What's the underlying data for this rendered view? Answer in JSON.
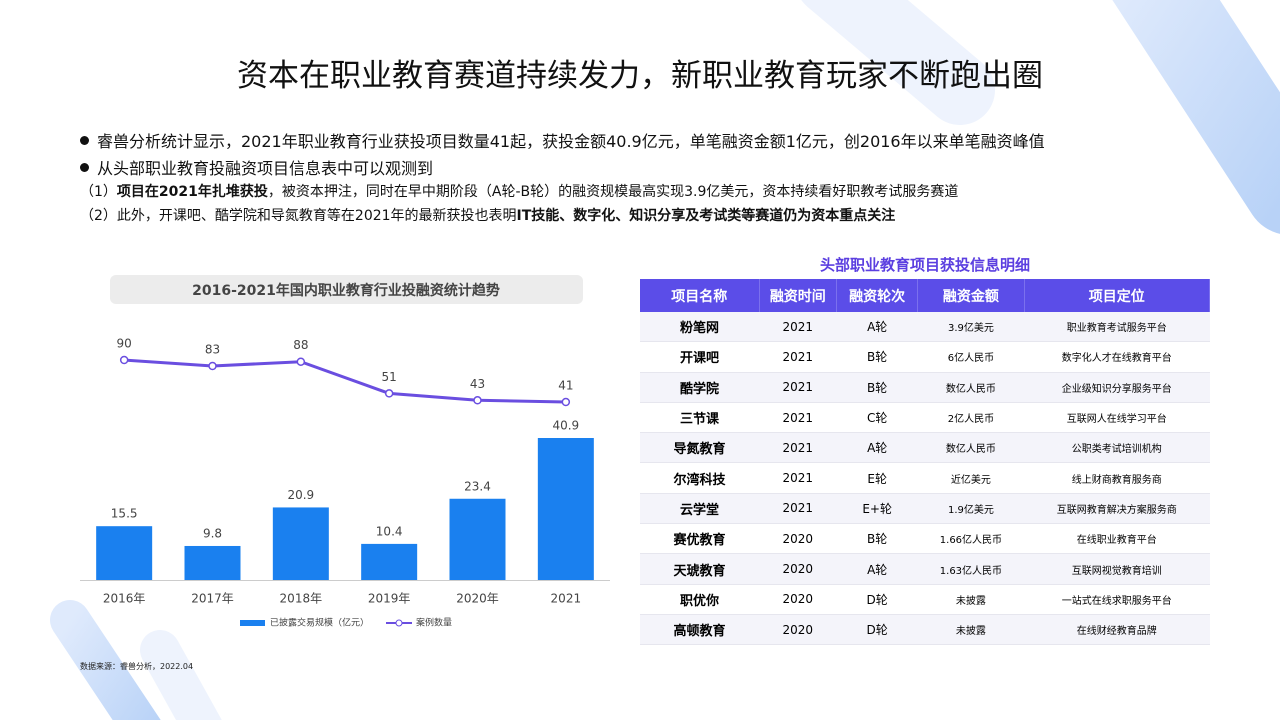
{
  "title": "资本在职业教育赛道持续发力，新职业教育玩家不断跑出圈",
  "bullets": [
    {
      "segments": [
        {
          "text": "睿兽分析统计显示，2021年职业教育行业获投项目数量41起，获投金额40.9亿元，单笔融资金额1亿元，创2016年以来单笔融资峰值",
          "bold": false
        }
      ]
    },
    {
      "segments": [
        {
          "text": "从头部职业教育投融资项目信息表中可以观测到",
          "bold": false
        }
      ]
    },
    {
      "segments": [
        {
          "text": "（1）",
          "bold": false
        },
        {
          "text": "项目在2021年扎堆获投",
          "bold": true
        },
        {
          "text": "，被资本押注，同时在早中期阶段（A轮-B轮）的融资规模最高实现3.9亿美元，资本持续看好职教考试服务赛道",
          "bold": false
        }
      ]
    },
    {
      "segments": [
        {
          "text": "（2）此外，开课吧、酷学院和导氮教育等在2021年的最新获投也表明",
          "bold": false
        },
        {
          "text": "IT技能、数字化、知识分享及考试类等赛道仍为资本重点关注",
          "bold": true
        }
      ]
    }
  ],
  "chart_data": {
    "type": "bar",
    "title": "2016-2021年国内职业教育行业投融资统计趋势",
    "categories": [
      "2016年",
      "2017年",
      "2018年",
      "2019年",
      "2020年",
      "2021"
    ],
    "series": [
      {
        "name": "已披露交易规模（亿元）",
        "type": "bar",
        "color": "#1a80ef",
        "values": [
          15.5,
          9.8,
          20.9,
          10.4,
          23.4,
          40.9
        ]
      },
      {
        "name": "案例数量",
        "type": "line",
        "color": "#6a4ee0",
        "values": [
          90,
          83,
          88,
          51,
          43,
          41
        ]
      }
    ]
  },
  "source": "数据来源：睿兽分析，2022.04",
  "table": {
    "title": "头部职业教育项目获投信息明细",
    "header": [
      "项目名称",
      "融资时间",
      "融资轮次",
      "融资金额",
      "项目定位"
    ],
    "rows": [
      [
        "粉笔网",
        "2021",
        "A轮",
        "3.9亿美元",
        "职业教育考试服务平台"
      ],
      [
        "开课吧",
        "2021",
        "B轮",
        "6亿人民币",
        "数字化人才在线教育平台"
      ],
      [
        "酷学院",
        "2021",
        "B轮",
        "数亿人民币",
        "企业级知识分享服务平台"
      ],
      [
        "三节课",
        "2021",
        "C轮",
        "2亿人民币",
        "互联网人在线学习平台"
      ],
      [
        "导氮教育",
        "2021",
        "A轮",
        "数亿人民币",
        "公职类考试培训机构"
      ],
      [
        "尔湾科技",
        "2021",
        "E轮",
        "近亿美元",
        "线上财商教育服务商"
      ],
      [
        "云学堂",
        "2021",
        "E+轮",
        "1.9亿美元",
        "互联网教育解决方案服务商"
      ],
      [
        "赛优教育",
        "2020",
        "B轮",
        "1.66亿人民币",
        "在线职业教育平台"
      ],
      [
        "天琥教育",
        "2020",
        "A轮",
        "1.63亿人民币",
        "互联网视觉教育培训"
      ],
      [
        "职优你",
        "2020",
        "D轮",
        "未披露",
        "一站式在线求职服务平台"
      ],
      [
        "高顿教育",
        "2020",
        "D轮",
        "未披露",
        "在线财经教育品牌"
      ]
    ]
  }
}
